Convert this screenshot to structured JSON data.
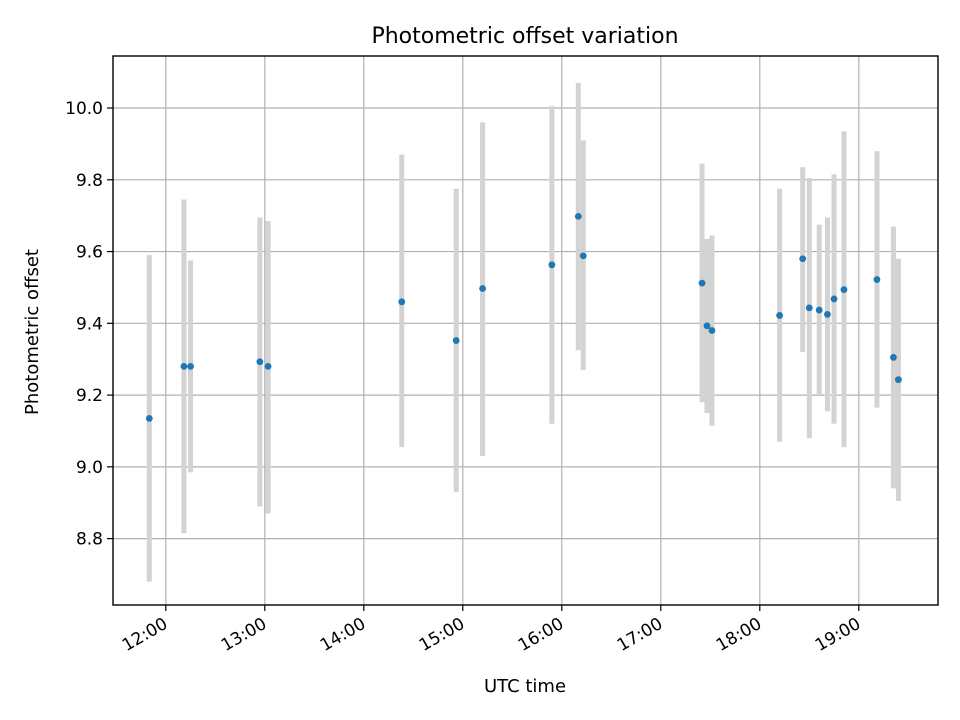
{
  "chart_data": {
    "type": "scatter",
    "title": "Photometric offset variation",
    "xlabel": "UTC time",
    "ylabel": "Photometric offset",
    "x_unit": "hours UTC",
    "xlim": [
      "11:28",
      "19:48"
    ],
    "ylim": [
      8.615,
      10.145
    ],
    "x_ticks": [
      "12:00",
      "13:00",
      "14:00",
      "15:00",
      "16:00",
      "17:00",
      "18:00",
      "19:00"
    ],
    "y_ticks": [
      "8.8",
      "9.0",
      "9.2",
      "9.4",
      "9.6",
      "9.8",
      "10.0"
    ],
    "grid": true,
    "colors": {
      "point": "#1f77b4",
      "errorbar": "#d3d3d3"
    },
    "series": [
      {
        "points": [
          {
            "x": "11:50",
            "y": 9.135,
            "ylo": 8.68,
            "yhi": 9.59
          },
          {
            "x": "12:11",
            "y": 9.28,
            "ylo": 8.815,
            "yhi": 9.745
          },
          {
            "x": "12:15",
            "y": 9.28,
            "ylo": 8.985,
            "yhi": 9.575
          },
          {
            "x": "12:57",
            "y": 9.293,
            "ylo": 8.89,
            "yhi": 9.695
          },
          {
            "x": "13:02",
            "y": 9.28,
            "ylo": 8.87,
            "yhi": 9.685
          },
          {
            "x": "14:23",
            "y": 9.46,
            "ylo": 9.055,
            "yhi": 9.87
          },
          {
            "x": "14:56",
            "y": 9.352,
            "ylo": 8.93,
            "yhi": 9.775
          },
          {
            "x": "15:12",
            "y": 9.497,
            "ylo": 9.03,
            "yhi": 9.96
          },
          {
            "x": "15:54",
            "y": 9.563,
            "ylo": 9.12,
            "yhi": 10.005
          },
          {
            "x": "16:10",
            "y": 9.698,
            "ylo": 9.325,
            "yhi": 10.07
          },
          {
            "x": "16:13",
            "y": 9.588,
            "ylo": 9.27,
            "yhi": 9.91
          },
          {
            "x": "17:25",
            "y": 9.512,
            "ylo": 9.18,
            "yhi": 9.845
          },
          {
            "x": "17:28",
            "y": 9.393,
            "ylo": 9.15,
            "yhi": 9.635
          },
          {
            "x": "17:31",
            "y": 9.38,
            "ylo": 9.115,
            "yhi": 9.645
          },
          {
            "x": "18:12",
            "y": 9.422,
            "ylo": 9.07,
            "yhi": 9.775
          },
          {
            "x": "18:26",
            "y": 9.58,
            "ylo": 9.32,
            "yhi": 9.835
          },
          {
            "x": "18:30",
            "y": 9.443,
            "ylo": 9.08,
            "yhi": 9.805
          },
          {
            "x": "18:36",
            "y": 9.437,
            "ylo": 9.2,
            "yhi": 9.675
          },
          {
            "x": "18:41",
            "y": 9.425,
            "ylo": 9.155,
            "yhi": 9.695
          },
          {
            "x": "18:45",
            "y": 9.468,
            "ylo": 9.12,
            "yhi": 9.815
          },
          {
            "x": "18:51",
            "y": 9.494,
            "ylo": 9.055,
            "yhi": 9.935
          },
          {
            "x": "19:11",
            "y": 9.522,
            "ylo": 9.165,
            "yhi": 9.88
          },
          {
            "x": "19:21",
            "y": 9.305,
            "ylo": 8.94,
            "yhi": 9.67
          },
          {
            "x": "19:24",
            "y": 9.243,
            "ylo": 8.905,
            "yhi": 9.58
          }
        ]
      }
    ]
  }
}
